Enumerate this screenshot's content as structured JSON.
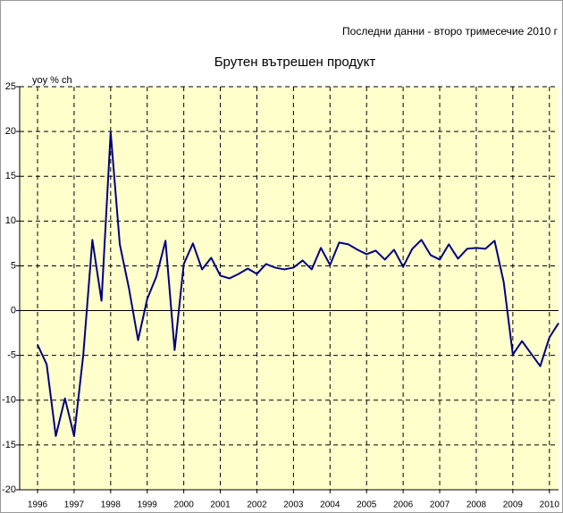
{
  "chart_data": {
    "type": "line",
    "title": "Брутен вътрешен продукт",
    "subtitle": "Последни данни - второ тримесечие 2010 г",
    "y_label": "yoy % ch",
    "categories": [
      "1996",
      null,
      null,
      null,
      "1997",
      null,
      null,
      null,
      "1998",
      null,
      null,
      null,
      "1999",
      null,
      null,
      null,
      "2000",
      null,
      null,
      null,
      "2001",
      null,
      null,
      null,
      "2002",
      null,
      null,
      null,
      "2003",
      null,
      null,
      null,
      "2004",
      null,
      null,
      null,
      "2005",
      null,
      null,
      null,
      "2006",
      null,
      null,
      null,
      "2007",
      null,
      null,
      null,
      "2008",
      null,
      null,
      null,
      "2009",
      null,
      null,
      null,
      "2010",
      null
    ],
    "series": [
      {
        "color": "#000080",
        "values": [
          -3.8,
          -6,
          -14,
          -9.8,
          -14,
          -5,
          7.9,
          1.1,
          19.9,
          7.4,
          2.5,
          -3.3,
          1.3,
          3.8,
          7.8,
          -4.4,
          5.2,
          7.5,
          4.6,
          5.9,
          3.9,
          3.6,
          4.1,
          4.7,
          4.1,
          5.2,
          4.8,
          4.6,
          4.8,
          5.6,
          4.6,
          7.0,
          5.1,
          7.6,
          7.4,
          6.8,
          6.3,
          6.7,
          5.7,
          6.8,
          4.9,
          6.9,
          7.9,
          6.2,
          5.7,
          7.4,
          5.8,
          6.9,
          7.0,
          6.9,
          7.8,
          3.2,
          -4.9,
          -3.4,
          -4.8,
          -6.2,
          -3.0,
          -1.4
        ]
      }
    ],
    "ylim": [
      -20,
      25
    ],
    "yticks": [
      -20,
      -15,
      -10,
      -5,
      0,
      5,
      10,
      15,
      20,
      25
    ],
    "grid": true,
    "plot_background": "#ffffcc"
  }
}
